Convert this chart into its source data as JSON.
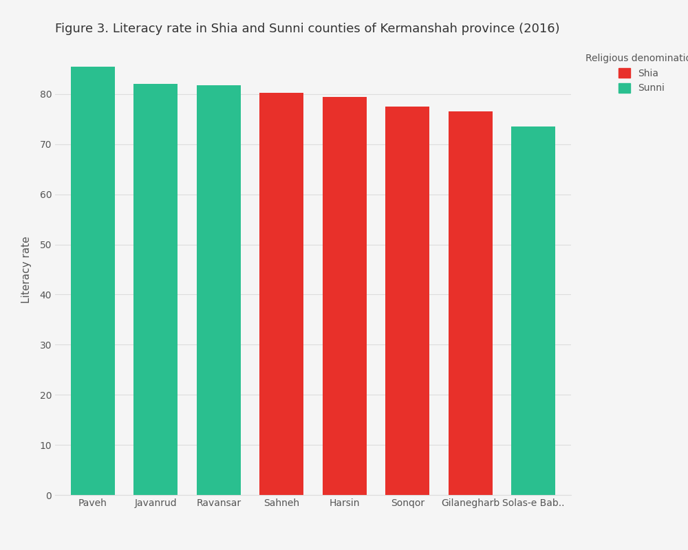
{
  "title": "Figure 3. Literacy rate in Shia and Sunni counties of Kermanshah province (2016)",
  "ylabel": "Literacy rate",
  "legend_title": "Religious denomination",
  "categories": [
    "Paveh",
    "Javanrud",
    "Ravansar",
    "Sahneh",
    "Harsin",
    "Sonqor",
    "Gilanegharb",
    "Solas-e Bab.."
  ],
  "values": [
    85.5,
    82.0,
    81.7,
    80.3,
    79.5,
    77.5,
    76.5,
    73.5
  ],
  "denominations": [
    "Sunni",
    "Sunni",
    "Sunni",
    "Shia",
    "Shia",
    "Shia",
    "Shia",
    "Sunni"
  ],
  "shia_color": "#e8302a",
  "sunni_color": "#2abf8f",
  "background_color": "#f5f5f5",
  "grid_color": "#dddddd",
  "ylim": [
    0,
    90
  ],
  "yticks": [
    0,
    10,
    20,
    30,
    40,
    50,
    60,
    70,
    80
  ],
  "title_fontsize": 13,
  "label_fontsize": 11,
  "tick_fontsize": 10,
  "legend_fontsize": 10,
  "bar_width": 0.7
}
